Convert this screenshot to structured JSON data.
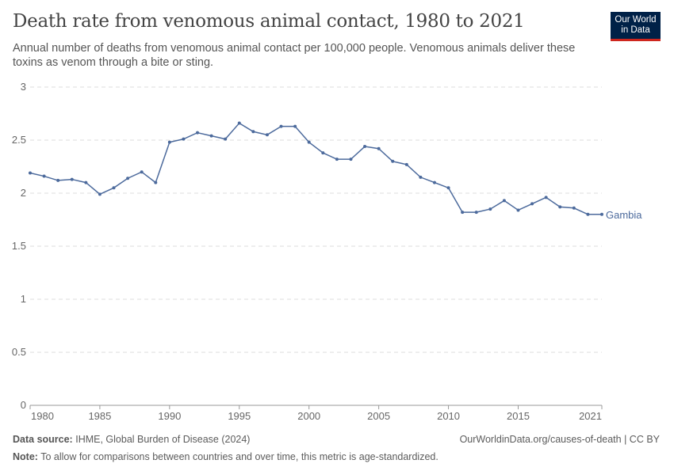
{
  "header": {
    "title": "Death rate from venomous animal contact, 1980 to 2021",
    "subtitle": "Annual number of deaths from venomous animal contact per 100,000 people. Venomous animals deliver these toxins as venom through a bite or sting.",
    "logo": "Our World in Data"
  },
  "footer": {
    "source_label": "Data source:",
    "source": "IHME, Global Burden of Disease (2024)",
    "url": "OurWorldinData.org/causes-of-death | CC BY",
    "note_label": "Note:",
    "note": "To allow for comparisons between countries and over time, this metric is age-standardized."
  },
  "chart_data": {
    "type": "line",
    "title": "Death rate from venomous animal contact, 1980 to 2021",
    "xlim": [
      1980,
      2021
    ],
    "ylim": [
      0,
      3
    ],
    "x_ticks": [
      1980,
      1985,
      1990,
      1995,
      2000,
      2005,
      2010,
      2015,
      2021
    ],
    "y_ticks": [
      0,
      0.5,
      1,
      1.5,
      2,
      2.5,
      3
    ],
    "grid": "horizontal dashed",
    "colors": {
      "Gambia": "#4c6a9c"
    },
    "x": [
      1980,
      1981,
      1982,
      1983,
      1984,
      1985,
      1986,
      1987,
      1988,
      1989,
      1990,
      1991,
      1992,
      1993,
      1994,
      1995,
      1996,
      1997,
      1998,
      1999,
      2000,
      2001,
      2002,
      2003,
      2004,
      2005,
      2006,
      2007,
      2008,
      2009,
      2010,
      2011,
      2012,
      2013,
      2014,
      2015,
      2016,
      2017,
      2018,
      2019,
      2020,
      2021
    ],
    "series": [
      {
        "name": "Gambia",
        "values": [
          2.19,
          2.16,
          2.12,
          2.13,
          2.1,
          1.99,
          2.05,
          2.14,
          2.2,
          2.1,
          2.48,
          2.51,
          2.57,
          2.54,
          2.51,
          2.66,
          2.58,
          2.55,
          2.63,
          2.63,
          2.48,
          2.38,
          2.32,
          2.32,
          2.44,
          2.42,
          2.3,
          2.27,
          2.15,
          2.1,
          2.05,
          1.82,
          1.82,
          1.85,
          1.93,
          1.84,
          1.9,
          1.96,
          1.87,
          1.86,
          1.8,
          1.8
        ]
      }
    ]
  }
}
